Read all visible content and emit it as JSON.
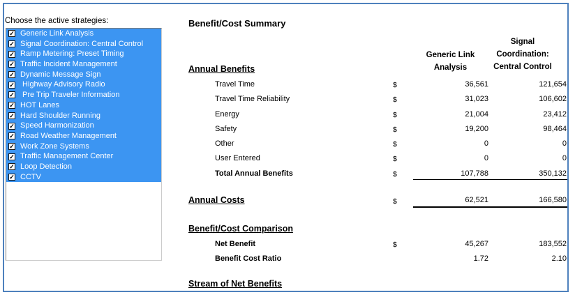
{
  "window": {
    "frame_border_color": "#4E81BD"
  },
  "sidebar": {
    "label": "Choose the active strategies:",
    "selection_color": "#3C95F2",
    "items": [
      {
        "label": "Generic Link Analysis",
        "checked": true
      },
      {
        "label": "Signal Coordination: Central Control",
        "checked": true
      },
      {
        "label": "Ramp Metering: Preset Timing",
        "checked": true
      },
      {
        "label": "Traffic Incident Management",
        "checked": true
      },
      {
        "label": "Dynamic Message Sign",
        "checked": true
      },
      {
        "label": " Highway Advisory Radio",
        "checked": true
      },
      {
        "label": " Pre Trip Traveler Information",
        "checked": true
      },
      {
        "label": "HOT Lanes",
        "checked": true
      },
      {
        "label": "Hard Shoulder Running",
        "checked": true
      },
      {
        "label": "Speed Harmonization",
        "checked": true
      },
      {
        "label": "Road Weather Management",
        "checked": true
      },
      {
        "label": "Work Zone Systems",
        "checked": true
      },
      {
        "label": "Traffic Management Center",
        "checked": true
      },
      {
        "label": "Loop Detection",
        "checked": true
      },
      {
        "label": "CCTV",
        "checked": true
      }
    ]
  },
  "summary": {
    "title": "Benefit/Cost Summary",
    "col1_header": "Generic Link\nAnalysis",
    "col2_header": "Signal\nCoordination:\nCentral Control",
    "annual_benefits": {
      "heading": "Annual Benefits",
      "rows": [
        {
          "label": "Travel Time",
          "currency": "$",
          "col1": "36,561",
          "col2": "121,654",
          "bold": false
        },
        {
          "label": "Travel Time Reliability",
          "currency": "$",
          "col1": "31,023",
          "col2": "106,602",
          "bold": false
        },
        {
          "label": "Energy",
          "currency": "$",
          "col1": "21,004",
          "col2": "23,412",
          "bold": false
        },
        {
          "label": "Safety",
          "currency": "$",
          "col1": "19,200",
          "col2": "98,464",
          "bold": false
        },
        {
          "label": "Other",
          "currency": "$",
          "col1": "0",
          "col2": "0",
          "bold": false
        },
        {
          "label": "User Entered",
          "currency": "$",
          "col1": "0",
          "col2": "0",
          "bold": false
        },
        {
          "label": "Total Annual Benefits",
          "currency": "$",
          "col1": "107,788",
          "col2": "350,132",
          "bold": true
        }
      ]
    },
    "annual_costs": {
      "heading": "Annual Costs",
      "currency": "$",
      "col1": "62,521",
      "col2": "166,580"
    },
    "comparison": {
      "heading": "Benefit/Cost Comparison",
      "rows": [
        {
          "label": "Net Benefit",
          "currency": "$",
          "col1": "45,267",
          "col2": "183,552",
          "bold": true
        },
        {
          "label": "Benefit Cost Ratio",
          "currency": "",
          "col1": "1.72",
          "col2": "2.10",
          "bold": true
        }
      ]
    },
    "stream": {
      "heading": "Stream of Net Benefits"
    }
  }
}
